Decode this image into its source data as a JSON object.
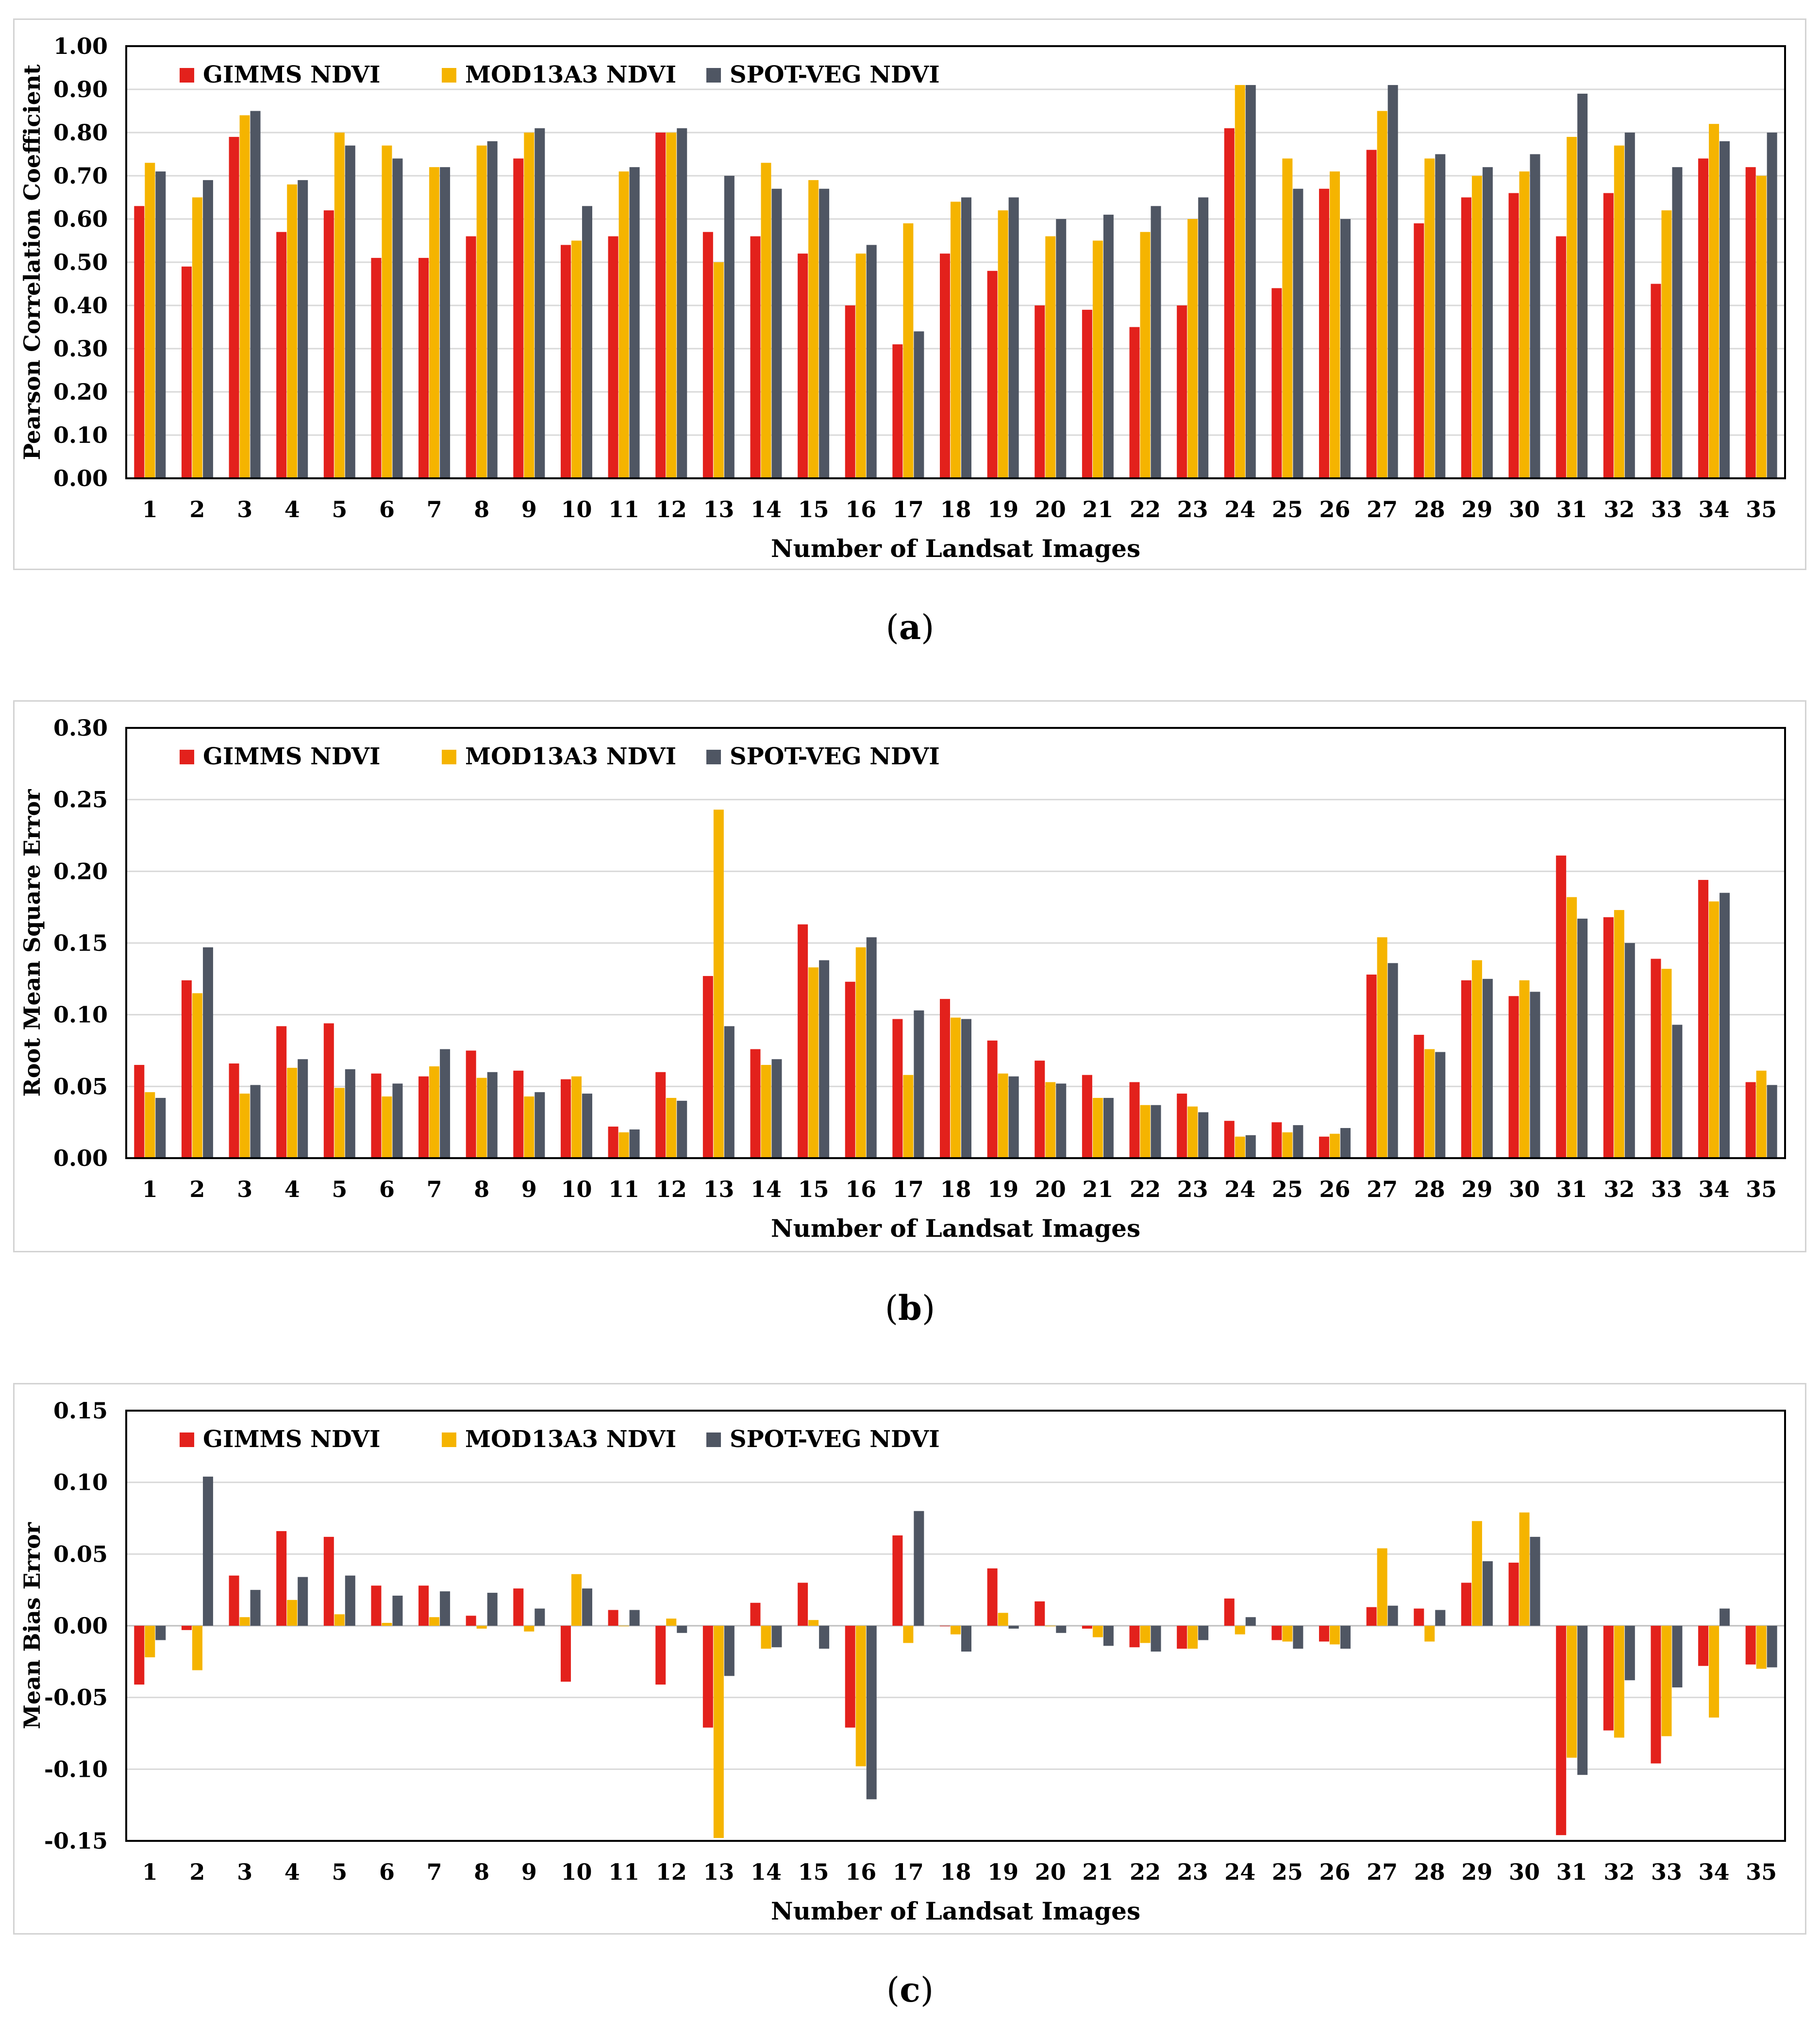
{
  "legend": [
    {
      "name": "GIMMS NDVI",
      "color": "#e3211c"
    },
    {
      "name": "MOD13A3 NDVI",
      "color": "#f5b400"
    },
    {
      "name": "SPOT-VEG NDVI",
      "color": "#4f5663"
    }
  ],
  "chart_data": [
    {
      "id": "a",
      "type": "bar",
      "caption_label": "a",
      "xlabel": "Number of Landsat Images",
      "ylabel": "Pearson Correlation Coefficient",
      "ylim": [
        0,
        1.0
      ],
      "yticks": [
        "0.00",
        "0.10",
        "0.20",
        "0.30",
        "0.40",
        "0.50",
        "0.60",
        "0.70",
        "0.80",
        "0.90",
        "1.00"
      ],
      "categories": [
        "1",
        "2",
        "3",
        "4",
        "5",
        "6",
        "7",
        "8",
        "9",
        "10",
        "11",
        "12",
        "13",
        "14",
        "15",
        "16",
        "17",
        "18",
        "19",
        "20",
        "21",
        "22",
        "23",
        "24",
        "25",
        "26",
        "27",
        "28",
        "29",
        "30",
        "31",
        "32",
        "33",
        "34",
        "35"
      ],
      "series": [
        {
          "name": "GIMMS NDVI",
          "values": [
            0.63,
            0.49,
            0.79,
            0.57,
            0.62,
            0.51,
            0.51,
            0.56,
            0.74,
            0.54,
            0.56,
            0.8,
            0.57,
            0.56,
            0.52,
            0.4,
            0.31,
            0.52,
            0.48,
            0.4,
            0.39,
            0.35,
            0.4,
            0.81,
            0.44,
            0.67,
            0.76,
            0.59,
            0.65,
            0.66,
            0.56,
            0.66,
            0.45,
            0.74,
            0.72
          ]
        },
        {
          "name": "MOD13A3 NDVI",
          "values": [
            0.73,
            0.65,
            0.84,
            0.68,
            0.8,
            0.77,
            0.72,
            0.77,
            0.8,
            0.55,
            0.71,
            0.8,
            0.5,
            0.73,
            0.69,
            0.52,
            0.59,
            0.64,
            0.62,
            0.56,
            0.55,
            0.57,
            0.6,
            0.91,
            0.74,
            0.71,
            0.85,
            0.74,
            0.7,
            0.71,
            0.79,
            0.77,
            0.62,
            0.82,
            0.7
          ]
        },
        {
          "name": "SPOT-VEG NDVI",
          "values": [
            0.71,
            0.69,
            0.85,
            0.69,
            0.77,
            0.74,
            0.72,
            0.78,
            0.81,
            0.63,
            0.72,
            0.81,
            0.7,
            0.67,
            0.67,
            0.54,
            0.34,
            0.65,
            0.65,
            0.6,
            0.61,
            0.63,
            0.65,
            0.91,
            0.67,
            0.6,
            0.91,
            0.75,
            0.72,
            0.75,
            0.89,
            0.8,
            0.72,
            0.78,
            0.8
          ]
        }
      ]
    },
    {
      "id": "b",
      "type": "bar",
      "caption_label": "b",
      "xlabel": "Number of Landsat Images",
      "ylabel": "Root Mean Square Error",
      "ylim": [
        0,
        0.3
      ],
      "yticks": [
        "0.00",
        "0.05",
        "0.10",
        "0.15",
        "0.20",
        "0.25",
        "0.30"
      ],
      "categories": [
        "1",
        "2",
        "3",
        "4",
        "5",
        "6",
        "7",
        "8",
        "9",
        "10",
        "11",
        "12",
        "13",
        "14",
        "15",
        "16",
        "17",
        "18",
        "19",
        "20",
        "21",
        "22",
        "23",
        "24",
        "25",
        "26",
        "27",
        "28",
        "29",
        "30",
        "31",
        "32",
        "33",
        "34",
        "35"
      ],
      "series": [
        {
          "name": "GIMMS NDVI",
          "values": [
            0.065,
            0.124,
            0.066,
            0.092,
            0.094,
            0.059,
            0.057,
            0.075,
            0.061,
            0.055,
            0.022,
            0.06,
            0.127,
            0.076,
            0.163,
            0.123,
            0.097,
            0.111,
            0.082,
            0.068,
            0.058,
            0.053,
            0.045,
            0.026,
            0.025,
            0.015,
            0.128,
            0.086,
            0.124,
            0.113,
            0.211,
            0.168,
            0.139,
            0.194,
            0.053
          ]
        },
        {
          "name": "MOD13A3 NDVI",
          "values": [
            0.046,
            0.115,
            0.045,
            0.063,
            0.049,
            0.043,
            0.064,
            0.056,
            0.043,
            0.057,
            0.018,
            0.042,
            0.243,
            0.065,
            0.133,
            0.147,
            0.058,
            0.098,
            0.059,
            0.053,
            0.042,
            0.037,
            0.036,
            0.015,
            0.018,
            0.017,
            0.154,
            0.076,
            0.138,
            0.124,
            0.182,
            0.173,
            0.132,
            0.179,
            0.061
          ]
        },
        {
          "name": "SPOT-VEG NDVI",
          "values": [
            0.042,
            0.147,
            0.051,
            0.069,
            0.062,
            0.052,
            0.076,
            0.06,
            0.046,
            0.045,
            0.02,
            0.04,
            0.092,
            0.069,
            0.138,
            0.154,
            0.103,
            0.097,
            0.057,
            0.052,
            0.042,
            0.037,
            0.032,
            0.016,
            0.023,
            0.021,
            0.136,
            0.074,
            0.125,
            0.116,
            0.167,
            0.15,
            0.093,
            0.185,
            0.051
          ]
        }
      ]
    },
    {
      "id": "c",
      "type": "bar",
      "caption_label": "c",
      "xlabel": "Number of Landsat Images",
      "ylabel": "Mean Bias Error",
      "ylim": [
        -0.15,
        0.15
      ],
      "yticks": [
        "-0.15",
        "-0.10",
        "-0.05",
        "0.00",
        "0.05",
        "0.10",
        "0.15"
      ],
      "categories": [
        "1",
        "2",
        "3",
        "4",
        "5",
        "6",
        "7",
        "8",
        "9",
        "10",
        "11",
        "12",
        "13",
        "14",
        "15",
        "16",
        "17",
        "18",
        "19",
        "20",
        "21",
        "22",
        "23",
        "24",
        "25",
        "26",
        "27",
        "28",
        "29",
        "30",
        "31",
        "32",
        "33",
        "34",
        "35"
      ],
      "series": [
        {
          "name": "GIMMS NDVI",
          "values": [
            -0.041,
            -0.003,
            0.035,
            0.066,
            0.062,
            0.028,
            0.028,
            0.007,
            0.026,
            -0.039,
            0.011,
            -0.041,
            -0.071,
            0.016,
            0.03,
            -0.071,
            0.063,
            0.0,
            0.04,
            0.017,
            -0.002,
            -0.015,
            -0.016,
            0.019,
            -0.01,
            -0.011,
            0.013,
            0.012,
            0.03,
            0.044,
            -0.146,
            -0.073,
            -0.096,
            -0.028,
            -0.027
          ]
        },
        {
          "name": "MOD13A3 NDVI",
          "values": [
            -0.022,
            -0.031,
            0.006,
            0.018,
            0.008,
            0.002,
            0.006,
            -0.002,
            -0.004,
            0.036,
            0.0,
            0.005,
            -0.148,
            -0.016,
            0.004,
            -0.098,
            -0.012,
            -0.006,
            0.009,
            0.0,
            -0.008,
            -0.012,
            -0.016,
            -0.006,
            -0.011,
            -0.013,
            0.054,
            -0.011,
            0.073,
            0.079,
            -0.092,
            -0.078,
            -0.077,
            -0.064,
            -0.03
          ]
        },
        {
          "name": "SPOT-VEG NDVI",
          "values": [
            -0.01,
            0.104,
            0.025,
            0.034,
            0.035,
            0.021,
            0.024,
            0.023,
            0.012,
            0.026,
            0.011,
            -0.005,
            -0.035,
            -0.015,
            -0.016,
            -0.121,
            0.08,
            -0.018,
            -0.002,
            -0.005,
            -0.014,
            -0.018,
            -0.01,
            0.006,
            -0.016,
            -0.016,
            0.014,
            0.011,
            0.045,
            0.062,
            -0.104,
            -0.038,
            -0.043,
            0.012,
            -0.029
          ]
        }
      ]
    }
  ]
}
